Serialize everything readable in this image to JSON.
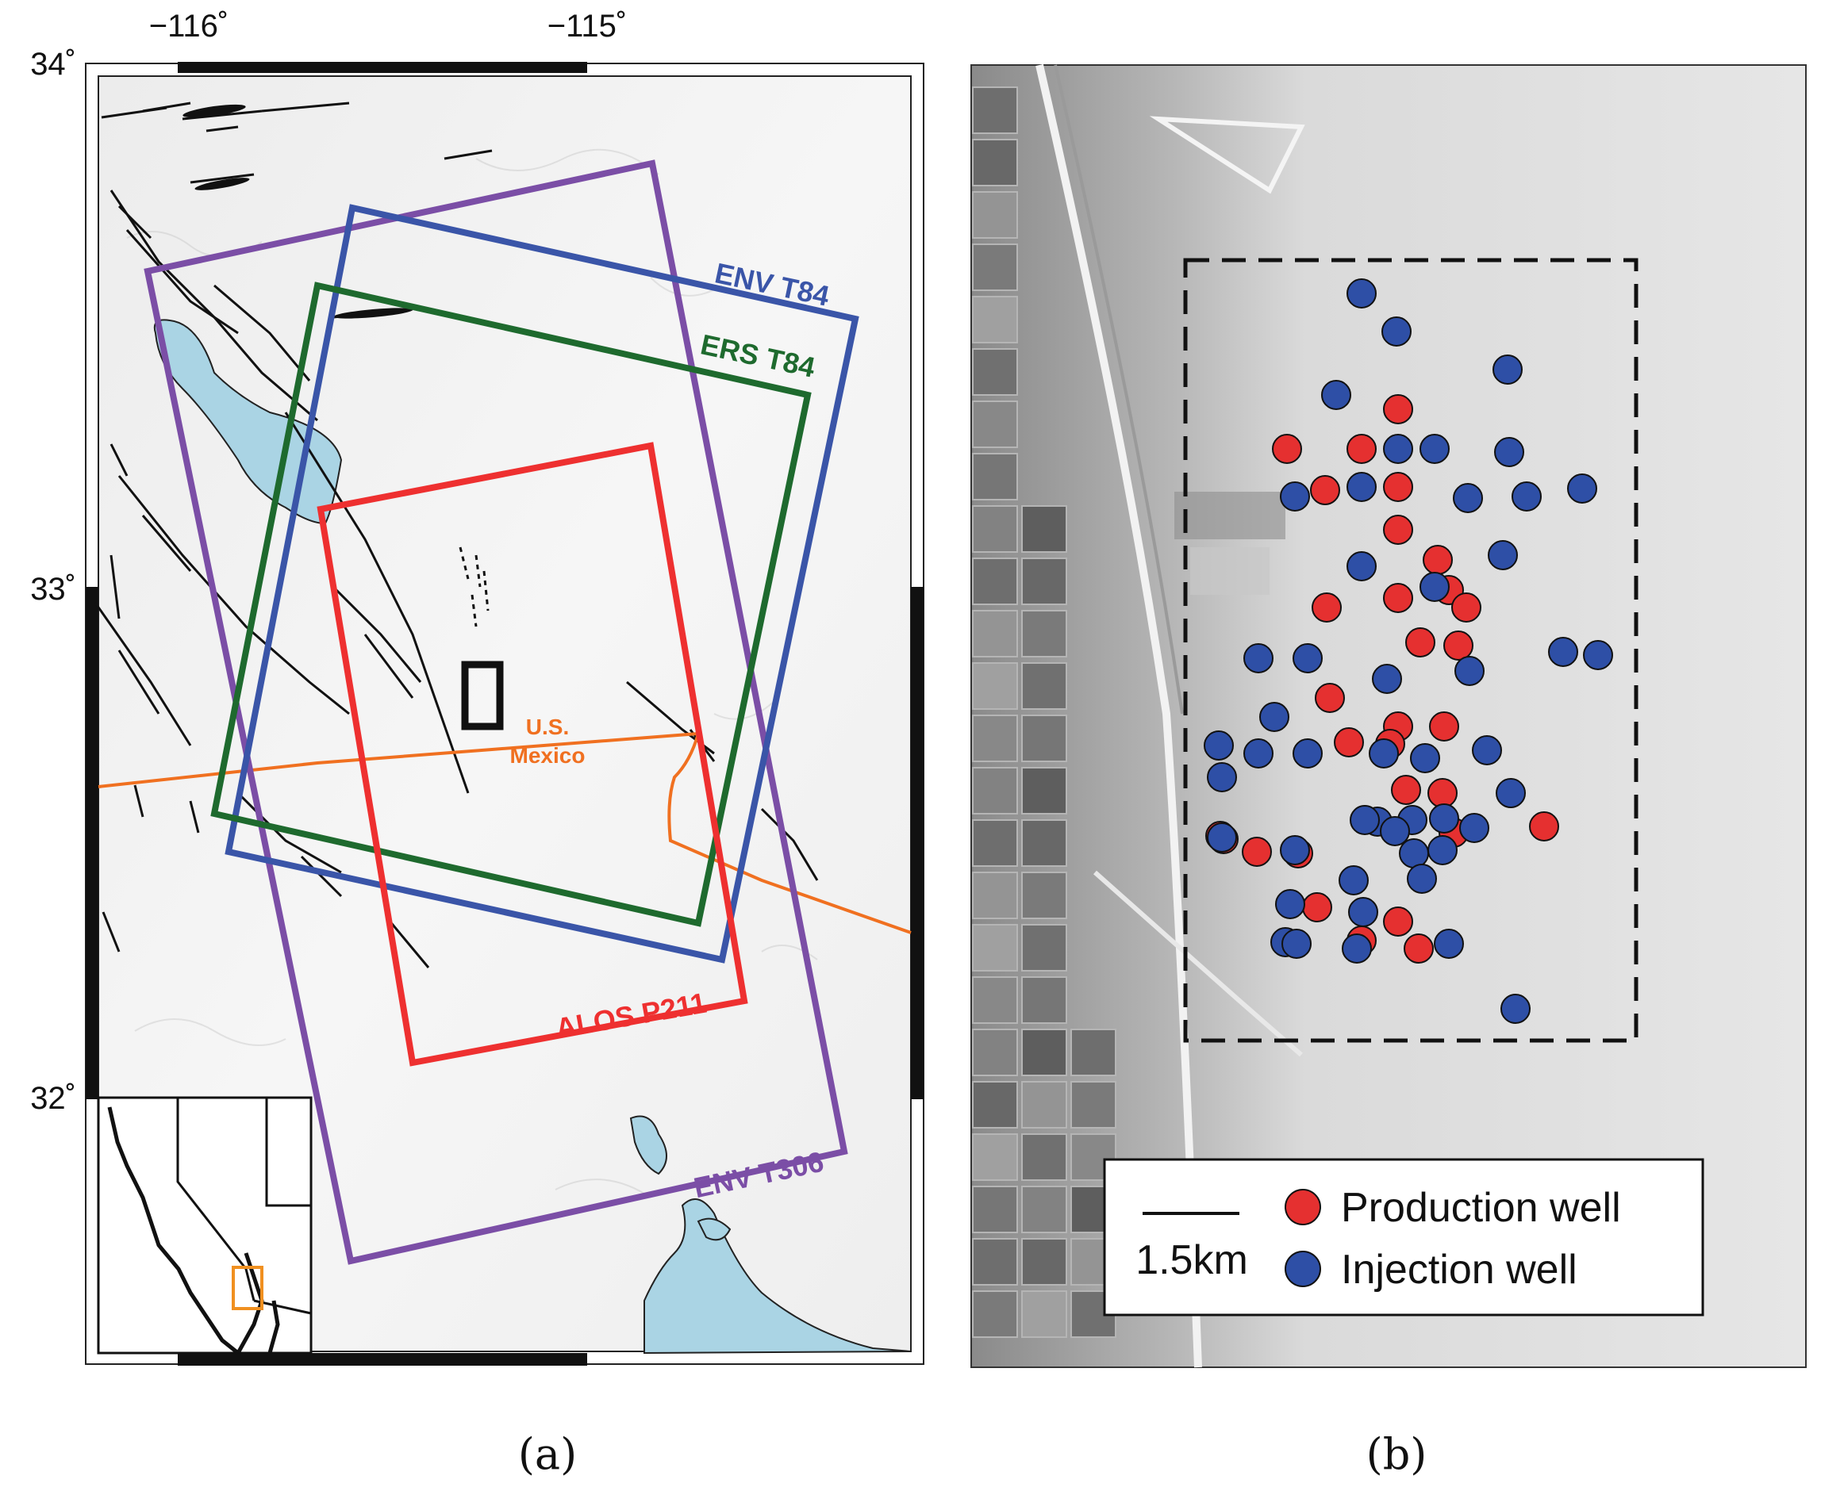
{
  "panel_a": {
    "caption": "(a)",
    "lon_ticks": [
      "−116˚",
      "−115˚"
    ],
    "lat_ticks": [
      "34˚",
      "33˚",
      "32˚"
    ],
    "frames": [
      {
        "name": "ENV T84",
        "color": "#3a55a8"
      },
      {
        "name": "ERS T84",
        "color": "#1e6a2e"
      },
      {
        "name": "ALOS P211",
        "color": "#ee3030"
      },
      {
        "name": "ENV T306",
        "color": "#7b4ea6"
      }
    ],
    "border_label_us": "U.S.",
    "border_label_mx": "Mexico",
    "colors": {
      "water": "#aad4e4",
      "border": "#f07020",
      "inset_box": "#f09020"
    }
  },
  "panel_b": {
    "caption": "(b)",
    "legend": {
      "scale_label": "1.5km",
      "production_label": "Production well",
      "injection_label": "Injection well"
    },
    "colors": {
      "production": "#e53030",
      "injection": "#2e4fa6"
    }
  }
}
